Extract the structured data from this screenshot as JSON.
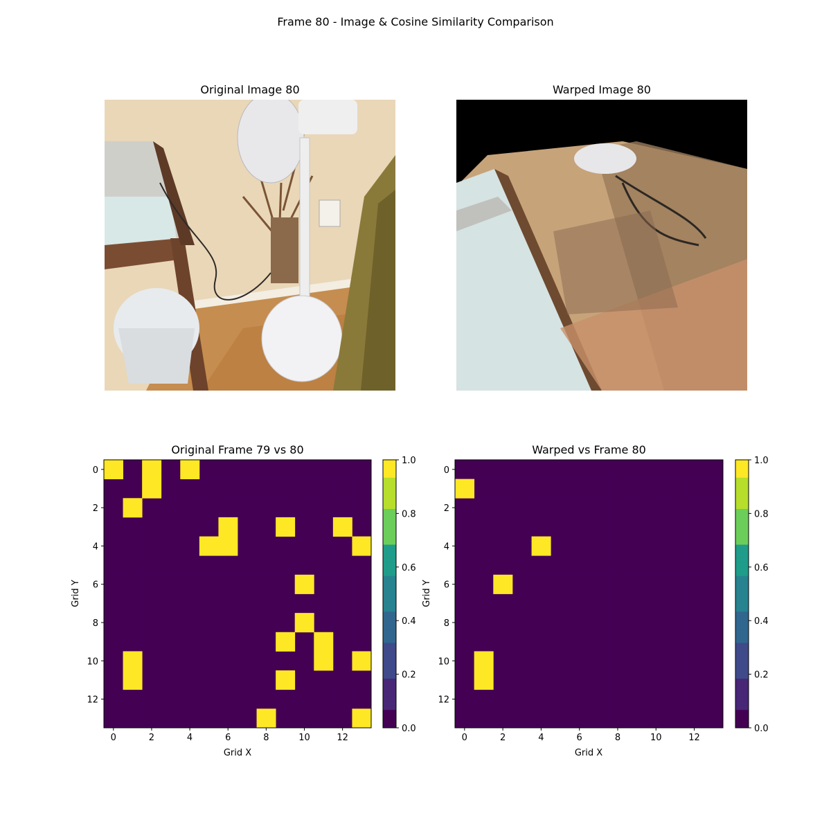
{
  "figure": {
    "title": "Frame 80 - Image & Cosine Similarity Comparison"
  },
  "panels": {
    "original_image": {
      "title": "Original Image 80"
    },
    "warped_image": {
      "title": "Warped Image 80"
    }
  },
  "chart_data": [
    {
      "type": "heatmap",
      "title": "Original Frame 79 vs 80",
      "xlabel": "Grid X",
      "ylabel": "Grid Y",
      "grid_size": [
        14,
        14
      ],
      "x_ticks": [
        0,
        2,
        4,
        6,
        8,
        10,
        12
      ],
      "y_ticks": [
        0,
        2,
        4,
        6,
        8,
        10,
        12
      ],
      "value_range": [
        0.0,
        1.0
      ],
      "colormap": "viridis",
      "colorbar_ticks": [
        "0.0",
        "0.2",
        "0.4",
        "0.6",
        "0.8",
        "1.0"
      ],
      "default_value": 0.0,
      "cells_value_1": [
        [
          0,
          0
        ],
        [
          2,
          0
        ],
        [
          4,
          0
        ],
        [
          2,
          1
        ],
        [
          1,
          2
        ],
        [
          6,
          3
        ],
        [
          9,
          3
        ],
        [
          12,
          3
        ],
        [
          5,
          4
        ],
        [
          6,
          4
        ],
        [
          13,
          4
        ],
        [
          10,
          6
        ],
        [
          10,
          8
        ],
        [
          9,
          9
        ],
        [
          11,
          9
        ],
        [
          1,
          10
        ],
        [
          11,
          10
        ],
        [
          13,
          10
        ],
        [
          1,
          11
        ],
        [
          9,
          11
        ],
        [
          8,
          13
        ],
        [
          13,
          13
        ]
      ]
    },
    {
      "type": "heatmap",
      "title": "Warped vs Frame 80",
      "xlabel": "Grid X",
      "ylabel": "Grid Y",
      "grid_size": [
        14,
        14
      ],
      "x_ticks": [
        0,
        2,
        4,
        6,
        8,
        10,
        12
      ],
      "y_ticks": [
        0,
        2,
        4,
        6,
        8,
        10,
        12
      ],
      "value_range": [
        0.0,
        1.0
      ],
      "colormap": "viridis",
      "colorbar_ticks": [
        "0.0",
        "0.2",
        "0.4",
        "0.6",
        "0.8",
        "1.0"
      ],
      "default_value": 0.0,
      "cells_value_1": [
        [
          0,
          1
        ],
        [
          4,
          4
        ],
        [
          2,
          6
        ],
        [
          1,
          10
        ],
        [
          1,
          11
        ]
      ]
    }
  ]
}
